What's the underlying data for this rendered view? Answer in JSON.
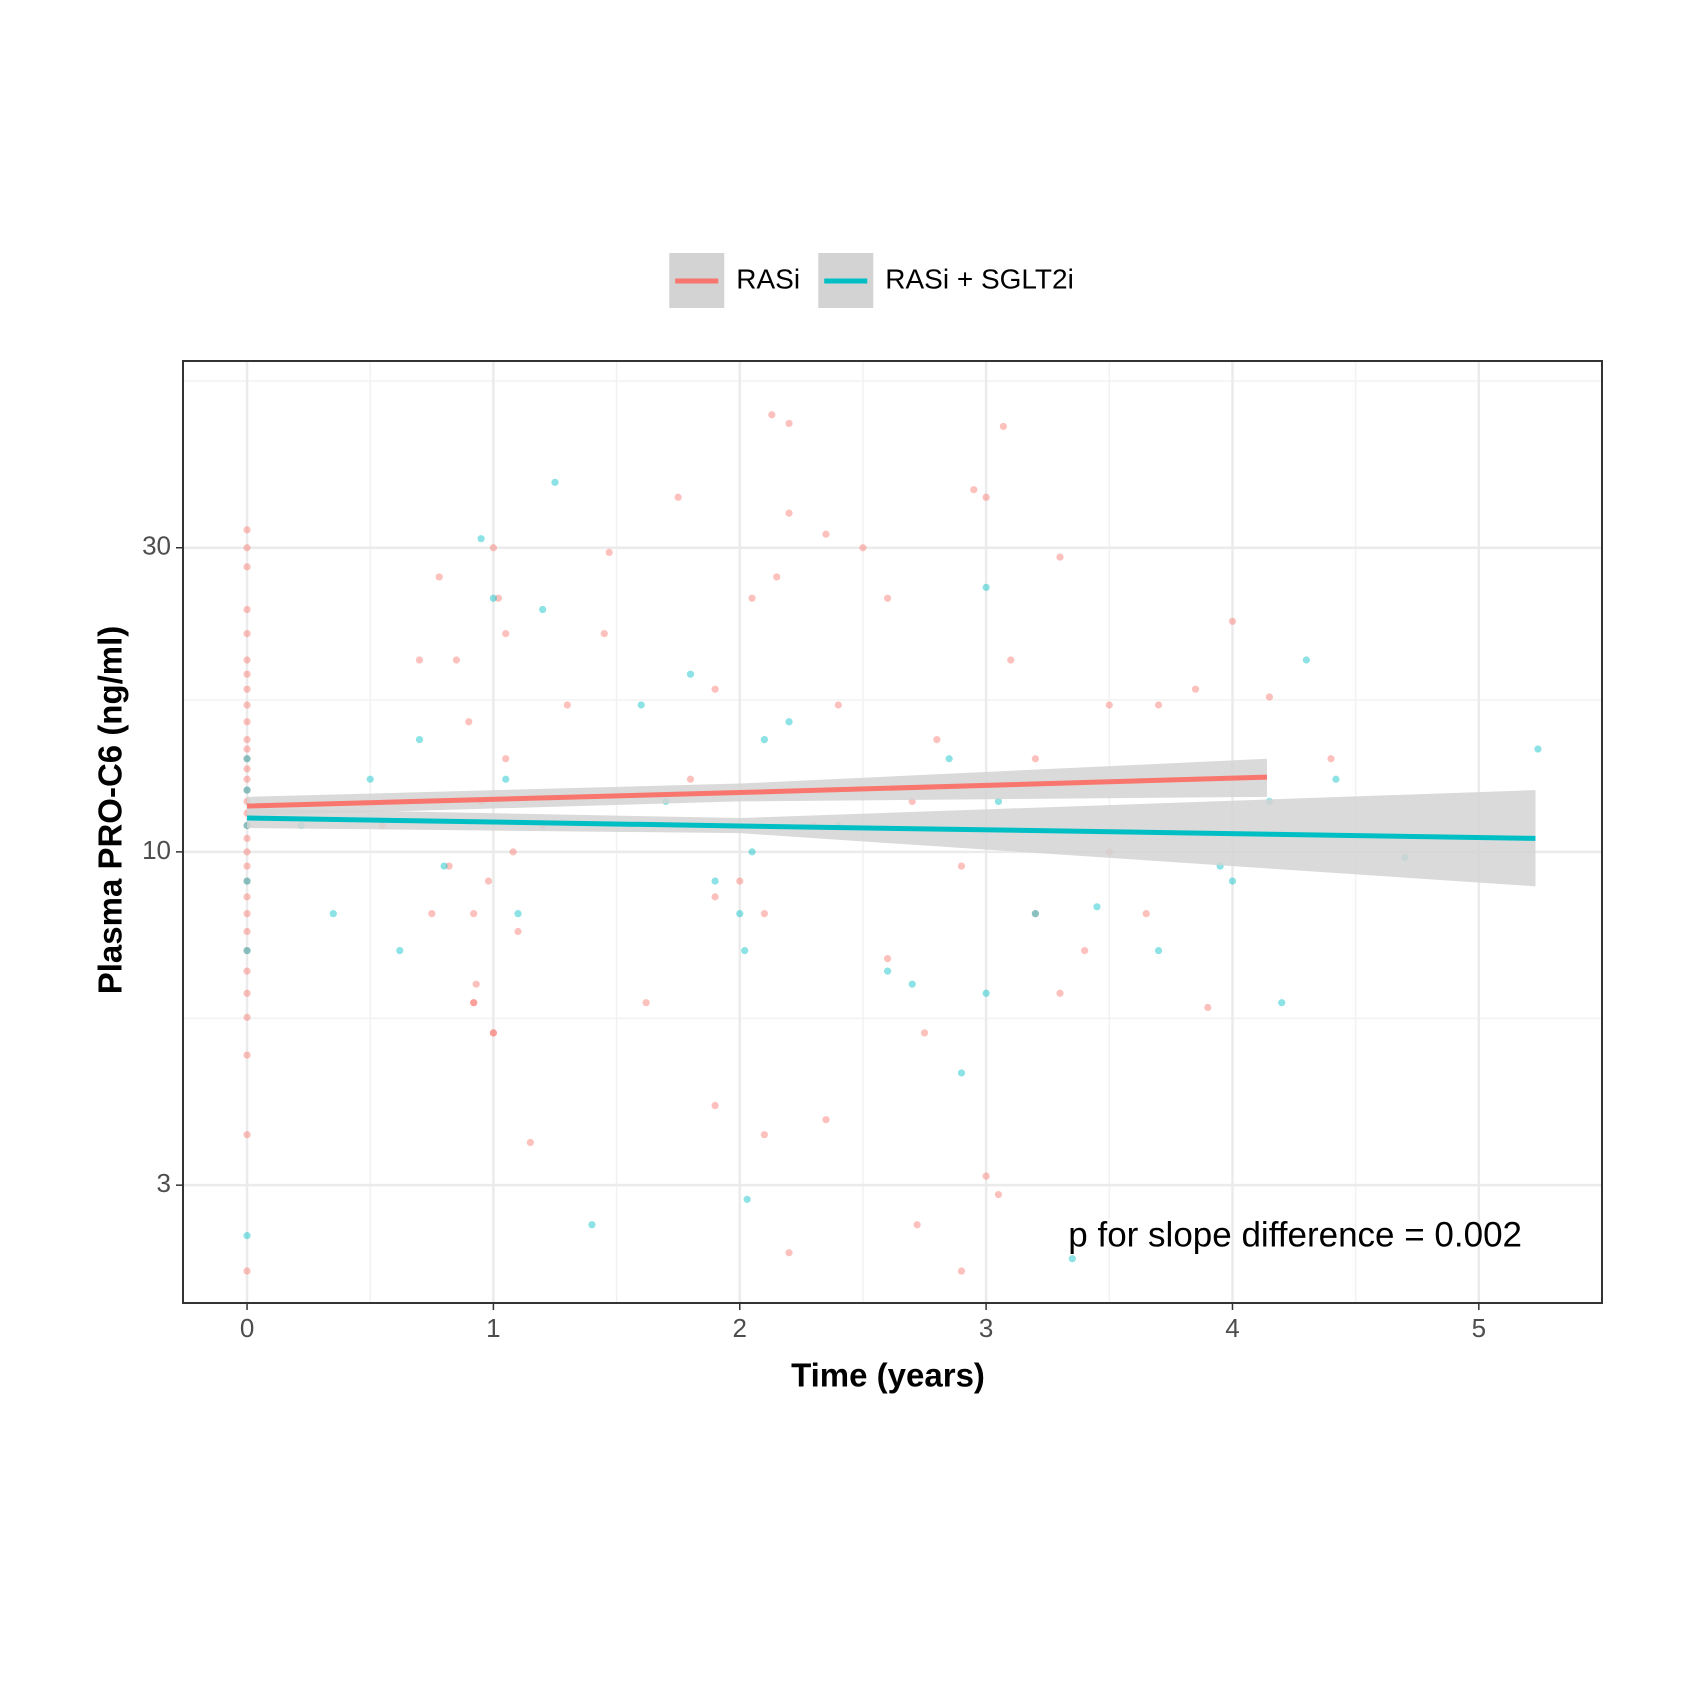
{
  "chart_data": {
    "type": "scatter",
    "x_label": "Time (years)",
    "y_label": "Plasma PRO-C6 (ng/ml)",
    "annotation": "p for slope difference = 0.002",
    "log_y": true,
    "grid": true,
    "legend_position": "top",
    "band_color": "#d3d3d3",
    "xlim": [
      -0.26,
      5.5
    ],
    "ylim": [
      1.96,
      58.9
    ],
    "xticks": [
      0,
      1,
      2,
      3,
      4,
      5
    ],
    "yticks": [
      3,
      10,
      30
    ],
    "x_minor_ticks": [
      0.5,
      1.5,
      2.5,
      3.5,
      4.5,
      5.5
    ],
    "y_minor_ticks": [
      5.48,
      17.32,
      54.77
    ],
    "series": [
      {
        "name": "RASi",
        "color": "#f8766d",
        "x": [
          0,
          0,
          0,
          0,
          0,
          0,
          0,
          0,
          0,
          0,
          0,
          0,
          0,
          0,
          0,
          0,
          0,
          0,
          0,
          0,
          0,
          0,
          0,
          0,
          0,
          0,
          0,
          0,
          0,
          0,
          0,
          0,
          0,
          0.78,
          0.85,
          0.9,
          0.95,
          0.98,
          1.0,
          1.02,
          1.05,
          1.08,
          0.92,
          1.1,
          0.93,
          1.15,
          1.05,
          0.82,
          1.2,
          1.3,
          0.7,
          0.55,
          0.75,
          1.0,
          0.92,
          2.13,
          2.2,
          3.07,
          1.75,
          2.2,
          2.95,
          3.0,
          2.5,
          2.35,
          4.0,
          3.3,
          1.47,
          1.45,
          1.9,
          2.05,
          2.15,
          2.4,
          2.6,
          2.8,
          3.1,
          3.5,
          3.7,
          3.2,
          2.7,
          1.8,
          2.3,
          2.9,
          1.9,
          2.0,
          2.1,
          3.2,
          3.4,
          2.6,
          2.75,
          1.9,
          2.1,
          2.35,
          3.0,
          2.72,
          2.9,
          2.2,
          3.05,
          1.62,
          3.9,
          4.15,
          3.85,
          4.4,
          3.5,
          3.65,
          3.3,
          1.0,
          0.92
        ],
        "values": [
          32,
          30,
          28,
          24,
          22,
          20,
          19,
          18,
          17,
          16,
          15,
          14.5,
          14,
          13.5,
          13,
          12.5,
          12,
          11.5,
          11,
          10.5,
          10,
          9.5,
          9,
          8.5,
          8,
          7.5,
          7,
          6.5,
          6,
          5.5,
          4.8,
          3.6,
          2.2,
          27,
          20,
          16,
          12,
          9,
          30,
          25,
          14,
          10,
          8,
          7.5,
          6.2,
          3.5,
          22,
          9.5,
          11,
          17,
          20,
          11,
          8,
          5.2,
          5.8,
          48.5,
          47,
          46.5,
          36,
          34,
          37,
          36,
          30,
          31.5,
          23,
          29,
          29.5,
          22,
          18,
          25,
          27,
          17,
          25,
          15,
          20,
          17,
          17,
          14,
          12,
          13,
          11,
          9.5,
          8.5,
          9,
          8,
          8,
          7,
          6.8,
          5.2,
          4,
          3.6,
          3.8,
          3.1,
          2.6,
          2.2,
          2.35,
          2.9,
          5.8,
          5.7,
          17.5,
          18,
          14,
          10,
          8,
          6,
          5.2,
          5.8
        ],
        "fit": {
          "x": [
            0,
            2,
            4.14
          ],
          "values": [
            11.8,
            12.39,
            13.1
          ],
          "ci_lower": [
            11.4,
            12.0,
            12.2
          ],
          "ci_upper": [
            12.2,
            12.8,
            14.0
          ]
        }
      },
      {
        "name": "RASi + SGLT2i",
        "color": "#00bfc4",
        "x": [
          0,
          0,
          0,
          0,
          0,
          0,
          0.22,
          0.35,
          0.5,
          0.62,
          0.7,
          0.8,
          0.95,
          1.0,
          1.05,
          1.1,
          1.2,
          1.25,
          1.4,
          1.6,
          1.7,
          1.8,
          1.9,
          2.0,
          2.02,
          2.05,
          2.1,
          2.2,
          2.4,
          2.6,
          2.7,
          2.85,
          3.0,
          3.0,
          3.05,
          3.2,
          3.35,
          3.45,
          3.7,
          3.95,
          4.0,
          4.15,
          4.2,
          4.3,
          4.42,
          4.7,
          5.24,
          2.9,
          2.03
        ],
        "values": [
          11,
          12.5,
          9,
          14,
          2.5,
          7,
          11,
          8,
          13,
          7,
          15,
          9.5,
          31,
          25,
          13,
          8,
          24,
          38,
          2.6,
          17,
          12,
          19,
          9,
          8,
          7,
          10,
          15,
          16,
          11,
          6.5,
          6.2,
          14,
          26,
          6.0,
          12,
          8,
          2.3,
          8.2,
          7,
          9.5,
          9,
          12,
          5.8,
          20,
          13,
          9.8,
          14.5,
          4.5,
          2.85
        ],
        "fit": {
          "x": [
            0,
            2,
            5.23
          ],
          "values": [
            11.3,
            10.98,
            10.5
          ],
          "ci_lower": [
            10.9,
            10.7,
            8.83
          ],
          "ci_upper": [
            11.7,
            11.3,
            12.5
          ]
        }
      }
    ]
  }
}
